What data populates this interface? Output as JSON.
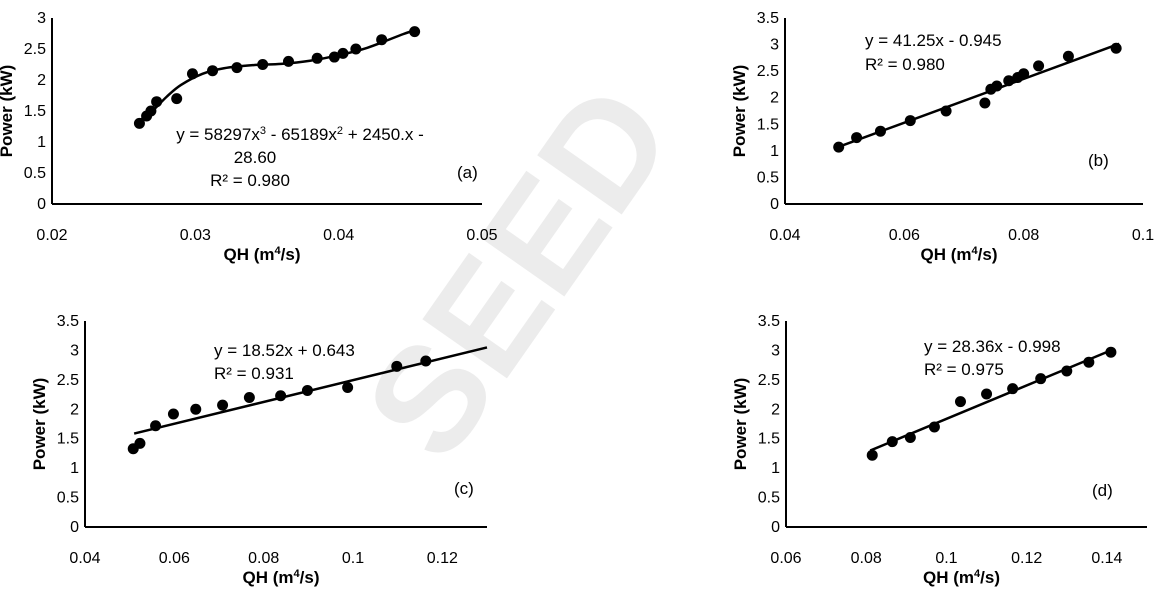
{
  "watermark": "SEED",
  "chart_data": [
    {
      "panel_label": "(a)",
      "type": "scatter",
      "xlabel_base": "QH (m",
      "xlabel_sup": "4",
      "xlabel_end": "/s)",
      "ylabel": "Power (kW)",
      "xlim": [
        0.02,
        0.05
      ],
      "ylim": [
        0,
        3
      ],
      "xticks": [
        "0.02",
        "0.03",
        "0.04",
        "0.05"
      ],
      "yticks": [
        "0",
        "0.5",
        "1",
        "1.5",
        "2",
        "2.5",
        "3"
      ],
      "equation_lines": [
        {
          "parts": [
            {
              "t": "y = 58297x"
            },
            {
              "t": "3",
              "sup": true
            },
            {
              "t": " - 65189x"
            },
            {
              "t": "2",
              "sup": true
            },
            {
              "t": " + 2450.x -"
            }
          ]
        },
        {
          "parts": [
            {
              "t": "28.60"
            }
          ]
        },
        {
          "parts": [
            {
              "t": "R² = 0.980"
            }
          ]
        }
      ],
      "fit": {
        "kind": "smooth",
        "x": [
          0.026,
          0.027,
          0.028,
          0.029,
          0.0305,
          0.032,
          0.034,
          0.036,
          0.038,
          0.04,
          0.042,
          0.0445,
          0.0453
        ],
        "y": [
          1.33,
          1.5,
          1.73,
          1.92,
          2.1,
          2.19,
          2.24,
          2.26,
          2.31,
          2.4,
          2.52,
          2.74,
          2.8
        ]
      },
      "series": [
        {
          "x": [
            0.0261,
            0.0266,
            0.0269,
            0.0273,
            0.0287,
            0.0298,
            0.0312,
            0.0329,
            0.0347,
            0.0365,
            0.0385,
            0.0397,
            0.0403,
            0.0412,
            0.043,
            0.0453
          ],
          "y": [
            1.3,
            1.42,
            1.5,
            1.65,
            1.7,
            2.1,
            2.15,
            2.2,
            2.25,
            2.3,
            2.35,
            2.37,
            2.43,
            2.5,
            2.65,
            2.78
          ]
        }
      ]
    },
    {
      "panel_label": "(b)",
      "type": "scatter",
      "xlabel_base": "QH (m",
      "xlabel_sup": "4",
      "xlabel_end": "/s)",
      "ylabel": "Power (kW)",
      "xlim": [
        0.04,
        0.1
      ],
      "ylim": [
        0,
        3.5
      ],
      "xticks": [
        "0.04",
        "0.06",
        "0.08",
        "0.1"
      ],
      "yticks": [
        "0",
        "0.5",
        "1",
        "1.5",
        "2",
        "2.5",
        "3",
        "3.5"
      ],
      "equation_lines": [
        {
          "parts": [
            {
              "t": "y = 41.25x - 0.945"
            }
          ]
        },
        {
          "parts": [
            {
              "t": "R² = 0.980"
            }
          ]
        }
      ],
      "fit": {
        "kind": "linear",
        "slope": 41.25,
        "intercept": -0.945,
        "x_range": [
          0.049,
          0.096
        ]
      },
      "series": [
        {
          "x": [
            0.049,
            0.052,
            0.056,
            0.061,
            0.067,
            0.0735,
            0.0745,
            0.0755,
            0.0775,
            0.079,
            0.08,
            0.0825,
            0.0875,
            0.0955
          ],
          "y": [
            1.07,
            1.25,
            1.37,
            1.57,
            1.75,
            1.9,
            2.16,
            2.22,
            2.32,
            2.38,
            2.45,
            2.6,
            2.78,
            2.93
          ]
        }
      ]
    },
    {
      "panel_label": "(c)",
      "type": "scatter",
      "xlabel_base": "QH (m",
      "xlabel_sup": "4",
      "xlabel_end": "/s)",
      "ylabel": "Power (kW)",
      "xlim": [
        0.04,
        0.13
      ],
      "ylim": [
        0,
        3.5
      ],
      "xticks": [
        "0.04",
        "0.06",
        "0.08",
        "0.1",
        "0.12"
      ],
      "yticks": [
        "0",
        "0.5",
        "1",
        "1.5",
        "2",
        "2.5",
        "3",
        "3.5"
      ],
      "equation_lines": [
        {
          "parts": [
            {
              "t": "y = 18.52x + 0.643"
            }
          ]
        },
        {
          "parts": [
            {
              "t": "R² = 0.931"
            }
          ]
        }
      ],
      "fit": {
        "kind": "linear",
        "slope": 18.52,
        "intercept": 0.643,
        "x_range": [
          0.051,
          0.13
        ]
      },
      "series": [
        {
          "x": [
            0.0508,
            0.0523,
            0.0558,
            0.0598,
            0.0648,
            0.0708,
            0.0768,
            0.0838,
            0.0898,
            0.0988,
            0.1098,
            0.1163
          ],
          "y": [
            1.33,
            1.42,
            1.72,
            1.92,
            2.0,
            2.07,
            2.2,
            2.23,
            2.32,
            2.37,
            2.73,
            2.82
          ]
        }
      ]
    },
    {
      "panel_label": "(d)",
      "type": "scatter",
      "xlabel_base": "QH (m",
      "xlabel_sup": "4",
      "xlabel_end": "/s)",
      "ylabel": "Power (kW)",
      "xlim": [
        0.06,
        0.15
      ],
      "ylim": [
        0,
        3.5
      ],
      "xticks": [
        "0.06",
        "0.08",
        "0.1",
        "0.12",
        "0.14"
      ],
      "yticks": [
        "0",
        "0.5",
        "1",
        "1.5",
        "2",
        "2.5",
        "3",
        "3.5"
      ],
      "equation_lines": [
        {
          "parts": [
            {
              "t": "y = 28.36x - 0.998"
            }
          ]
        },
        {
          "parts": [
            {
              "t": "R² = 0.975"
            }
          ]
        }
      ],
      "fit": {
        "kind": "linear",
        "slope": 28.36,
        "intercept": -0.998,
        "x_range": [
          0.081,
          0.141
        ]
      },
      "series": [
        {
          "x": [
            0.0815,
            0.0865,
            0.091,
            0.097,
            0.1035,
            0.11,
            0.1165,
            0.1235,
            0.13,
            0.1355,
            0.141
          ],
          "y": [
            1.22,
            1.45,
            1.52,
            1.7,
            2.13,
            2.26,
            2.35,
            2.52,
            2.65,
            2.8,
            2.97
          ]
        }
      ]
    }
  ]
}
